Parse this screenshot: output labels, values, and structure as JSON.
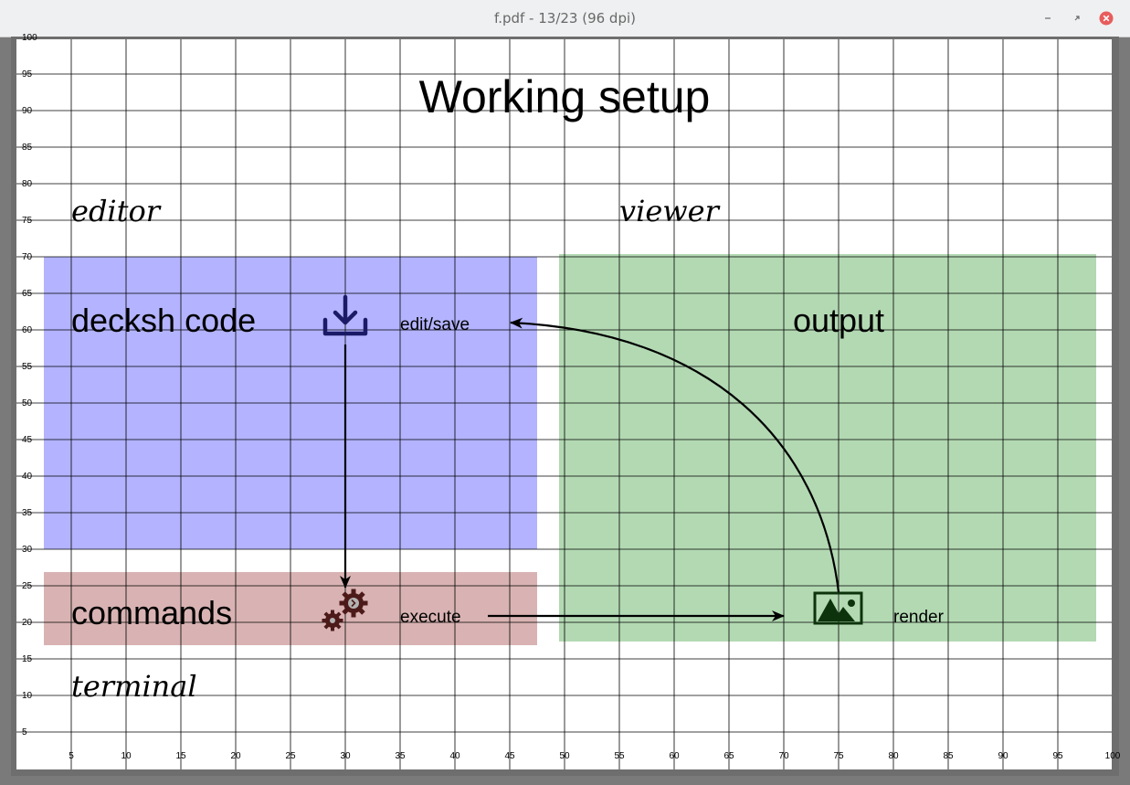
{
  "window": {
    "title": "f.pdf - 13/23 (96 dpi)",
    "controls": [
      "minimize",
      "restore",
      "close"
    ],
    "close_color": "#e85c5c"
  },
  "slide": {
    "title": "Working setup",
    "labels": {
      "editor": "editor",
      "viewer": "viewer",
      "terminal": "terminal",
      "code": "decksh code",
      "commands": "commands",
      "output": "output",
      "edit_save": "edit/save",
      "execute": "execute",
      "render": "render"
    },
    "colors": {
      "editor_panel": "#b3b3ff",
      "commands_panel": "#d9b3b3",
      "viewer_panel": "#b3d9b3",
      "save_icon": "#1a1a66",
      "gear_icon": "#4d1a1a",
      "image_icon": "#0d330d",
      "grid": "#000000"
    },
    "icons": {
      "save": "download-icon",
      "execute": "gears-icon",
      "render": "image-icon"
    },
    "grid": {
      "x_ticks": [
        "5",
        "10",
        "15",
        "20",
        "25",
        "30",
        "35",
        "40",
        "45",
        "50",
        "55",
        "60",
        "65",
        "70",
        "75",
        "80",
        "85",
        "90",
        "95",
        "100"
      ],
      "y_ticks": [
        "5",
        "10",
        "15",
        "20",
        "25",
        "30",
        "35",
        "40",
        "45",
        "50",
        "55",
        "60",
        "65",
        "70",
        "75",
        "80",
        "85",
        "90",
        "95",
        "100"
      ]
    }
  }
}
